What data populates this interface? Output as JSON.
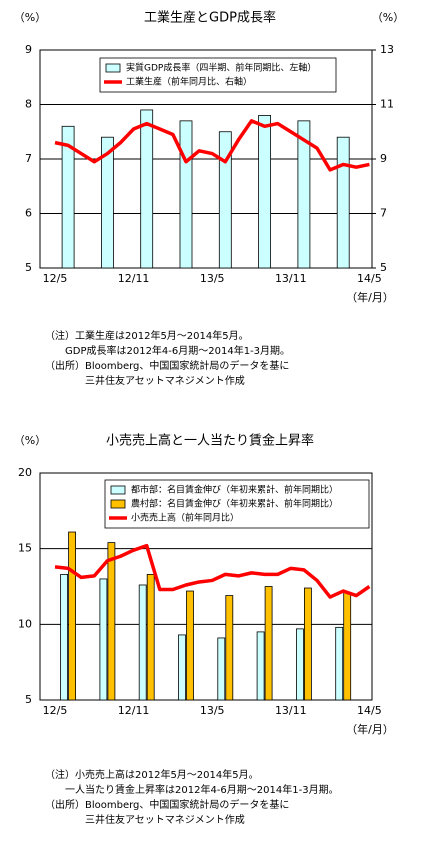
{
  "chart_data": [
    {
      "type": "bar",
      "title": "工業生産とGDP成長率",
      "y_label": "（%）",
      "y2_label": "（%）",
      "x_label": "（年/月）",
      "categories": [
        "12/5",
        null,
        null,
        null,
        null,
        null,
        "12/11",
        null,
        null,
        null,
        null,
        null,
        "13/5",
        null,
        null,
        null,
        null,
        null,
        "13/11",
        null,
        null,
        null,
        null,
        null,
        "14/5"
      ],
      "series": [
        {
          "name": "実質GDP成長率（四半期、前年同期比、左軸）",
          "type": "bar",
          "color": "#ccffff",
          "axis": "y",
          "values": [
            null,
            7.6,
            null,
            null,
            7.4,
            null,
            null,
            7.9,
            null,
            null,
            7.7,
            null,
            null,
            7.5,
            null,
            null,
            7.8,
            null,
            null,
            7.7,
            null,
            null,
            7.4,
            null,
            null
          ]
        },
        {
          "name": "工業生産（前年同月比、右軸）",
          "type": "line",
          "color": "#ff0000",
          "axis": "y2",
          "values": [
            9.6,
            9.5,
            9.2,
            8.9,
            9.2,
            9.6,
            10.1,
            10.3,
            10.1,
            9.9,
            8.9,
            9.3,
            9.2,
            8.9,
            9.7,
            10.4,
            10.2,
            10.3,
            10.0,
            9.7,
            9.4,
            8.6,
            8.8,
            8.7,
            8.8
          ]
        }
      ],
      "ylim": [
        5,
        9
      ],
      "yticks": [
        5,
        6,
        7,
        8,
        9
      ],
      "y2lim": [
        5,
        13
      ],
      "y2ticks": [
        5,
        7,
        9,
        11,
        13
      ],
      "grid": true,
      "notes": [
        "（注）工業生産は2012年5月～2014年5月。",
        "GDP成長率は2012年4-6月期～2014年1-3月期。",
        "（出所）Bloomberg、中国国家統計局のデータを基に",
        "三井住友アセットマネジメント作成"
      ]
    },
    {
      "type": "bar",
      "title": "小売売上高と一人当たり賃金上昇率",
      "y_label": "（%）",
      "x_label": "（年/月）",
      "categories": [
        "12/5",
        null,
        null,
        null,
        null,
        null,
        "12/11",
        null,
        null,
        null,
        null,
        null,
        "13/5",
        null,
        null,
        null,
        null,
        null,
        "13/11",
        null,
        null,
        null,
        null,
        null,
        "14/5"
      ],
      "series": [
        {
          "name": "都市部：名目賃金伸び（年初来累計、前年同期比）",
          "type": "bar",
          "color": "#ccffff",
          "axis": "y",
          "values": [
            null,
            13.3,
            null,
            null,
            13.0,
            null,
            null,
            12.6,
            null,
            null,
            9.3,
            null,
            null,
            9.1,
            null,
            null,
            9.5,
            null,
            null,
            9.7,
            null,
            null,
            9.8,
            null,
            null
          ]
        },
        {
          "name": "農村部：名目賃金伸び（年初来累計、前年同期比）",
          "type": "bar",
          "color": "#ffc000",
          "axis": "y",
          "values": [
            null,
            16.1,
            null,
            null,
            15.4,
            null,
            null,
            13.3,
            null,
            null,
            12.2,
            null,
            null,
            11.9,
            null,
            null,
            12.5,
            null,
            null,
            12.4,
            null,
            null,
            12.1,
            null,
            null
          ]
        },
        {
          "name": "小売売上高（前年同月比）",
          "type": "line",
          "color": "#ff0000",
          "axis": "y",
          "values": [
            13.8,
            13.7,
            13.1,
            13.2,
            14.2,
            14.5,
            14.9,
            15.2,
            12.3,
            12.3,
            12.6,
            12.8,
            12.9,
            13.3,
            13.2,
            13.4,
            13.3,
            13.3,
            13.7,
            13.6,
            12.9,
            11.8,
            12.2,
            11.9,
            12.5
          ]
        }
      ],
      "ylim": [
        5,
        20
      ],
      "yticks": [
        5,
        10,
        15,
        20
      ],
      "grid": true,
      "notes": [
        "（注）小売売上高は2012年5月～2014年5月。",
        "一人当たり賃金上昇率は2012年4-6月期～2014年1-3月期。",
        "（出所）Bloomberg、中国国家統計局のデータを基に",
        "三井住友アセットマネジメント作成"
      ]
    }
  ]
}
